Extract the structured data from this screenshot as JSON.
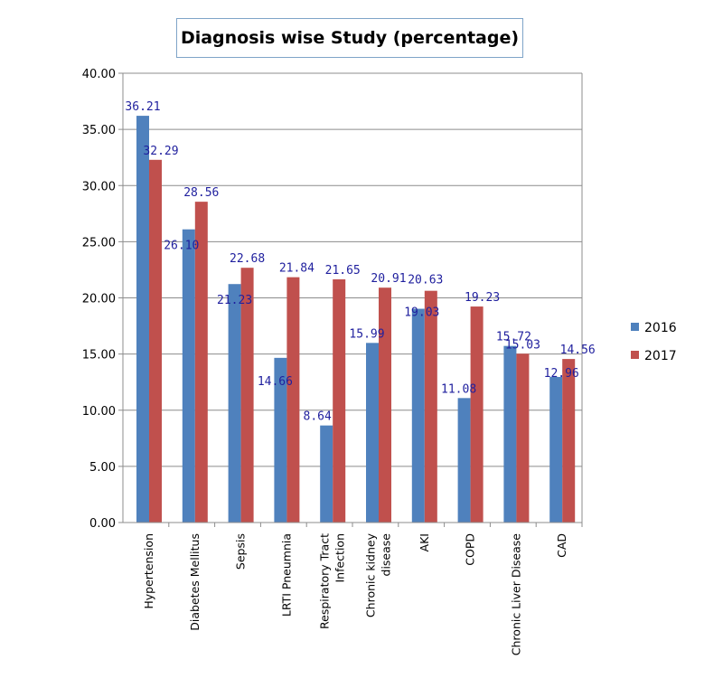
{
  "chart_data": {
    "type": "bar",
    "title": "Diagnosis wise Study (percentage)",
    "xlabel": "",
    "ylabel": "",
    "ylim": [
      0,
      40
    ],
    "y_ticks": [
      "0.00",
      "5.00",
      "10.00",
      "15.00",
      "20.00",
      "25.00",
      "30.00",
      "35.00",
      "40.00"
    ],
    "grid": true,
    "legend_position": "right",
    "categories": [
      [
        "Hypertension"
      ],
      [
        "Diabetes Mellitus"
      ],
      [
        "Sepsis"
      ],
      [
        "LRTI Pneumnia"
      ],
      [
        "Respiratory Tract",
        "Infection"
      ],
      [
        "Chronic kidney",
        "disease"
      ],
      [
        "AKI"
      ],
      [
        "COPD"
      ],
      [
        "Chronic Liver Disease"
      ],
      [
        "CAD"
      ]
    ],
    "series": [
      {
        "name": "2016",
        "color": "#4f81bd",
        "values": [
          36.21,
          26.1,
          21.23,
          14.66,
          8.64,
          15.99,
          19.03,
          11.08,
          15.72,
          12.96
        ]
      },
      {
        "name": "2017",
        "color": "#c0504d",
        "values": [
          32.29,
          28.56,
          22.68,
          21.84,
          21.65,
          20.91,
          20.63,
          19.23,
          15.03,
          14.56
        ]
      }
    ]
  }
}
